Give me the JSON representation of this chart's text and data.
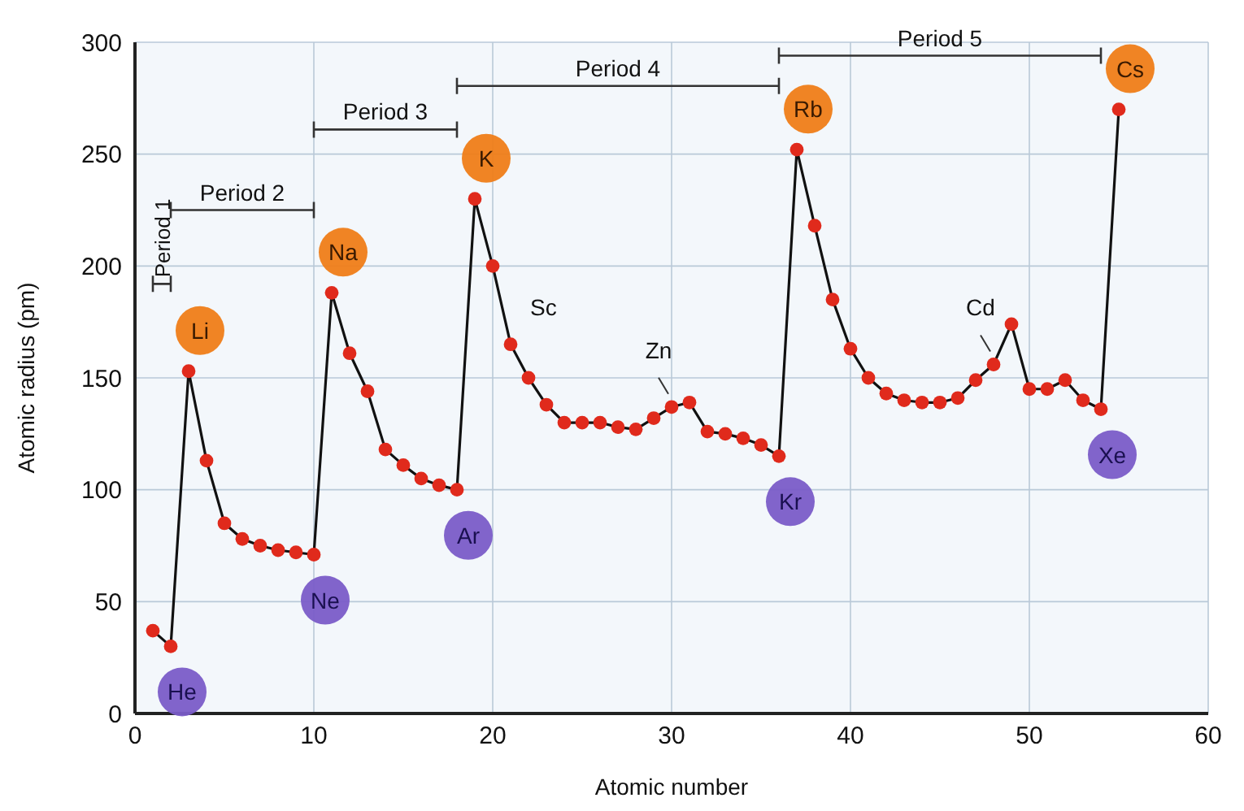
{
  "chart_data": {
    "type": "line",
    "xlabel": "Atomic number",
    "ylabel": "Atomic radius (pm)",
    "x": [
      1,
      2,
      3,
      4,
      5,
      6,
      7,
      8,
      9,
      10,
      11,
      12,
      13,
      14,
      15,
      16,
      17,
      18,
      19,
      20,
      21,
      22,
      23,
      24,
      25,
      26,
      27,
      28,
      29,
      30,
      31,
      32,
      33,
      34,
      35,
      36,
      37,
      38,
      39,
      40,
      41,
      42,
      43,
      44,
      45,
      46,
      47,
      48,
      49,
      50,
      51,
      52,
      53,
      54,
      55
    ],
    "series": [
      {
        "color": "#e02a1c",
        "values": [
          37,
          30,
          153,
          113,
          85,
          78,
          75,
          73,
          72,
          71,
          188,
          161,
          144,
          118,
          111,
          105,
          102,
          100,
          230,
          200,
          165,
          150,
          138,
          130,
          130,
          130,
          128,
          127,
          132,
          137,
          139,
          126,
          125,
          123,
          120,
          115,
          252,
          218,
          185,
          163,
          150,
          143,
          140,
          139,
          139,
          141,
          149,
          156,
          174,
          145,
          145,
          149,
          140,
          136,
          270
        ]
      }
    ],
    "xlim": [
      0,
      60
    ],
    "xticks": [
      0,
      10,
      20,
      30,
      40,
      50,
      60
    ],
    "ylim": [
      0,
      300
    ],
    "yticks": [
      0,
      50,
      100,
      150,
      200,
      250,
      300
    ],
    "grid": true,
    "marker": "circle",
    "line_style": "solid",
    "annotations": [
      "Period 1",
      "Period 2",
      "Period 3",
      "Period 4",
      "Period 5",
      {
        "text": "He",
        "x": 2,
        "y": 30
      },
      {
        "text": "Li",
        "x": 3,
        "y": 153
      },
      {
        "text": "Na",
        "x": 11,
        "y": 188
      },
      {
        "text": "Ne",
        "x": 10,
        "y": 71
      },
      {
        "text": "K",
        "x": 19,
        "y": 230
      },
      {
        "text": "Ar",
        "x": 18,
        "y": 100
      },
      {
        "text": "Sc",
        "x": 21,
        "y": 165
      },
      {
        "text": "Zn",
        "x": 30,
        "y": 137
      },
      {
        "text": "Kr",
        "x": 36,
        "y": 115
      },
      {
        "text": "Rb",
        "x": 37,
        "y": 252
      },
      {
        "text": "Cd",
        "x": 48,
        "y": 156
      },
      {
        "text": "Xe",
        "x": 54,
        "y": 136
      },
      {
        "text": "Cs",
        "x": 55,
        "y": 270
      }
    ]
  }
}
